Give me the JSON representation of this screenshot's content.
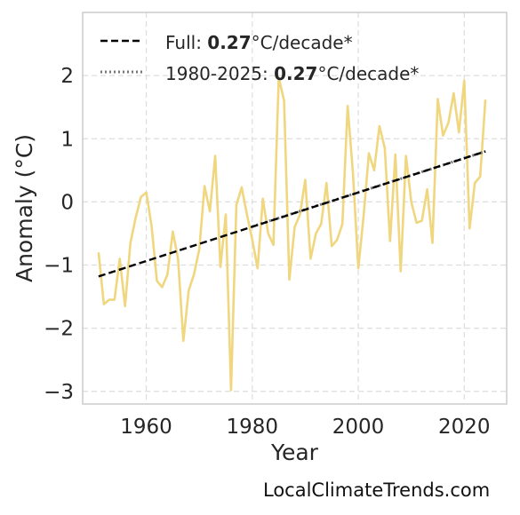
{
  "chart_data": {
    "type": "line",
    "xlabel": "Year",
    "ylabel": "Anomaly (°C)",
    "xlim": [
      1948,
      2028
    ],
    "ylim": [
      -3.2,
      3.0
    ],
    "xticks": [
      "1960",
      "1980",
      "2000",
      "2020"
    ],
    "yticks": [
      "2",
      "1",
      "0",
      "−1",
      "−2",
      "−3"
    ],
    "grid": true,
    "legend_position": "top-left",
    "legend": [
      {
        "prefix": "Full: ",
        "value": "0.27",
        "suffix": "°C/decade*",
        "style": "dashed"
      },
      {
        "prefix": "1980-2025: ",
        "value": "0.27",
        "suffix": "°C/decade*",
        "style": "dotted"
      }
    ],
    "series": [
      {
        "color": "#f0d67e",
        "x": [
          1951,
          1952,
          1953,
          1954,
          1955,
          1956,
          1957,
          1958,
          1959,
          1960,
          1961,
          1962,
          1963,
          1964,
          1965,
          1966,
          1967,
          1968,
          1969,
          1970,
          1971,
          1972,
          1973,
          1974,
          1975,
          1976,
          1977,
          1978,
          1979,
          1980,
          1981,
          1982,
          1983,
          1984,
          1985,
          1986,
          1987,
          1988,
          1989,
          1990,
          1991,
          1992,
          1993,
          1994,
          1995,
          1996,
          1997,
          1998,
          1999,
          2000,
          2001,
          2002,
          2003,
          2004,
          2005,
          2006,
          2007,
          2008,
          2009,
          2010,
          2011,
          2012,
          2013,
          2014,
          2015,
          2016,
          2017,
          2018,
          2019,
          2020,
          2021,
          2022,
          2023,
          2024
        ],
        "values": [
          -0.8,
          -1.62,
          -1.55,
          -1.55,
          -0.9,
          -1.65,
          -0.65,
          -0.25,
          0.08,
          0.15,
          -0.38,
          -1.25,
          -1.35,
          -1.15,
          -0.47,
          -0.9,
          -2.2,
          -1.4,
          -1.15,
          -0.75,
          0.25,
          -0.15,
          0.73,
          -1.03,
          -0.2,
          -2.98,
          -0.05,
          0.23,
          -0.2,
          -0.6,
          -1.05,
          0.05,
          -0.5,
          -0.68,
          1.97,
          1.6,
          -1.23,
          -0.4,
          -0.2,
          0.35,
          -0.9,
          -0.5,
          -0.35,
          0.3,
          -0.7,
          -0.6,
          -0.35,
          1.52,
          0.45,
          -1.05,
          -0.23,
          0.77,
          0.5,
          1.2,
          0.85,
          -0.62,
          0.75,
          -1.1,
          0.73,
          0.0,
          -0.33,
          -0.3,
          0.2,
          -0.65,
          1.63,
          1.05,
          1.25,
          1.72,
          1.1,
          1.92,
          -0.42,
          0.3,
          0.4,
          1.62
        ]
      }
    ],
    "trend_full": {
      "x": [
        1951,
        2024
      ],
      "values": [
        -1.18,
        0.8
      ],
      "color": "#000000"
    },
    "trend_recent": {
      "x": [
        1980,
        2024
      ],
      "values": [
        -0.39,
        0.8
      ],
      "color": "#777777"
    }
  },
  "source": "LocalClimateTrends.com"
}
